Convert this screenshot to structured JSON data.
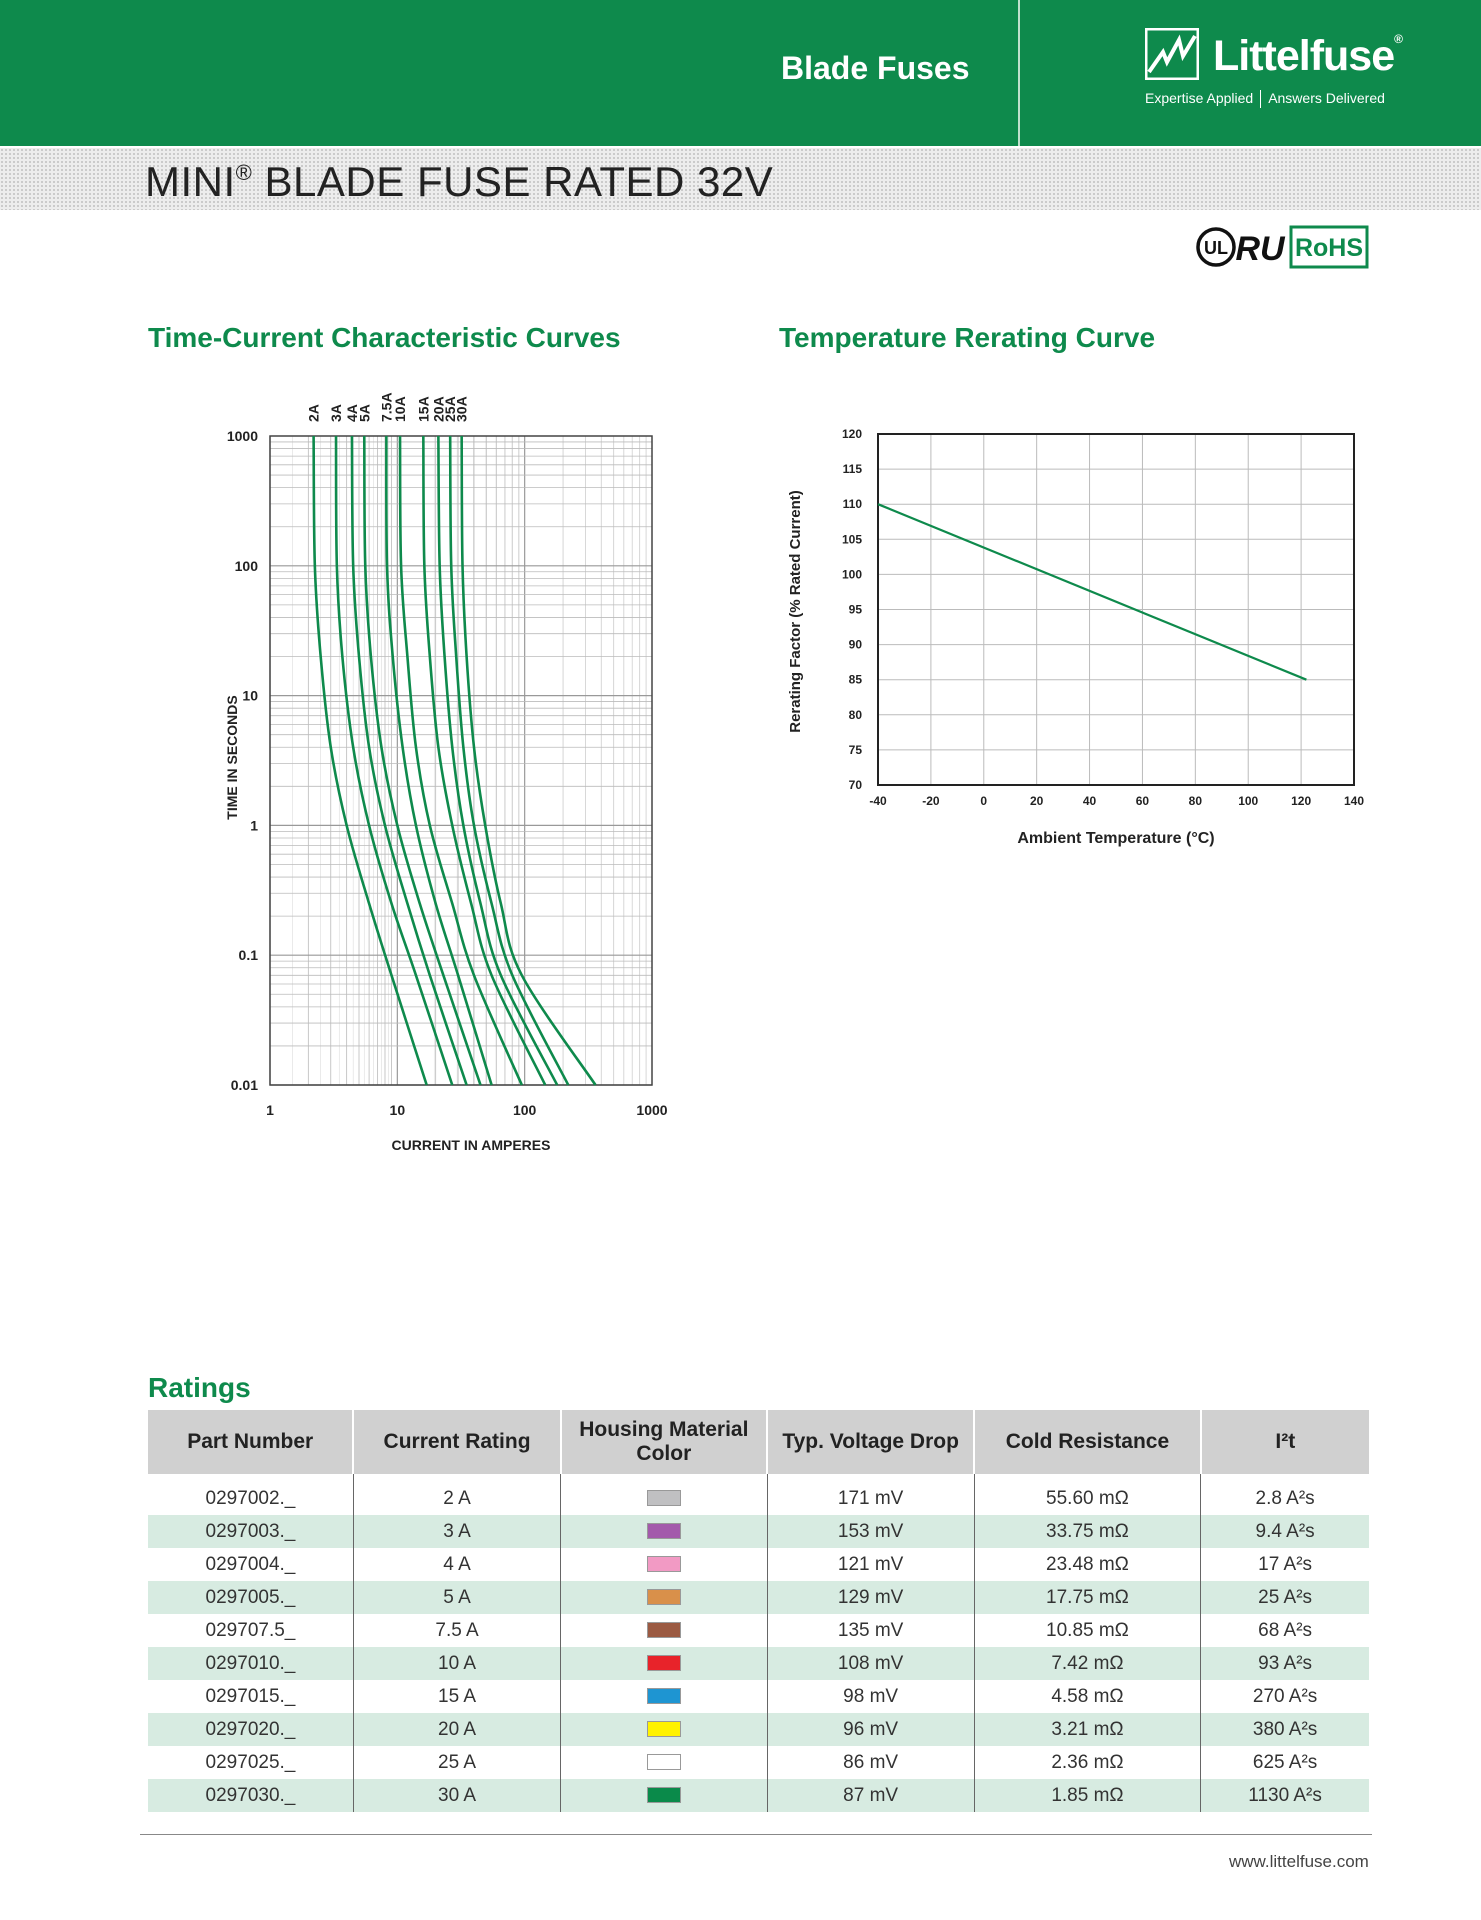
{
  "header": {
    "section": "Blade Fuses",
    "brand": "Littelfuse",
    "brand_mark": "®",
    "tagline_left": "Expertise Applied",
    "tagline_right": "Answers Delivered",
    "green": "#0e8a4c"
  },
  "title": {
    "main": "MINI",
    "reg": "®",
    "rest": " BLADE FUSE RATED 32V"
  },
  "certifications": {
    "ul_icon": "UL",
    "ru_icon": "RU",
    "rohs_label": "RoHS"
  },
  "tcc_heading": "Time-Current Characteristic Curves",
  "temp_heading": "Temperature Rerating Curve",
  "ratings_heading": "Ratings",
  "chart_data": [
    {
      "type": "line",
      "title": "Time-Current Characteristic Curves",
      "xscale": "log",
      "yscale": "log",
      "xlabel": "CURRENT IN AMPERES",
      "ylabel": "TIME IN SECONDS",
      "xlim": [
        1,
        1000
      ],
      "ylim": [
        0.01,
        1000
      ],
      "xticks": [
        "1",
        "10",
        "100",
        "1000"
      ],
      "yticks": [
        "0.01",
        "0.1",
        "1",
        "10",
        "100",
        "1000"
      ],
      "series": [
        {
          "name": "2A",
          "points": [
            [
              2.2,
              1000
            ],
            [
              2.25,
              100
            ],
            [
              2.5,
              20
            ],
            [
              3,
              4
            ],
            [
              4,
              1
            ],
            [
              6,
              0.25
            ],
            [
              9,
              0.07
            ],
            [
              17,
              0.01
            ]
          ]
        },
        {
          "name": "3A",
          "points": [
            [
              3.3,
              1000
            ],
            [
              3.35,
              100
            ],
            [
              3.7,
              20
            ],
            [
              4.5,
              4
            ],
            [
              6,
              1
            ],
            [
              9,
              0.25
            ],
            [
              14,
              0.07
            ],
            [
              27,
              0.01
            ]
          ]
        },
        {
          "name": "4A",
          "points": [
            [
              4.4,
              1000
            ],
            [
              4.5,
              100
            ],
            [
              5,
              20
            ],
            [
              6,
              4
            ],
            [
              8,
              1
            ],
            [
              12,
              0.25
            ],
            [
              18,
              0.07
            ],
            [
              35,
              0.01
            ]
          ]
        },
        {
          "name": "5A",
          "points": [
            [
              5.5,
              1000
            ],
            [
              5.6,
              100
            ],
            [
              6.2,
              20
            ],
            [
              7.5,
              4
            ],
            [
              10,
              1
            ],
            [
              15,
              0.25
            ],
            [
              23,
              0.07
            ],
            [
              45,
              0.01
            ]
          ]
        },
        {
          "name": "7.5A",
          "points": [
            [
              8.2,
              1000
            ],
            [
              8.3,
              100
            ],
            [
              9.2,
              20
            ],
            [
              11,
              4
            ],
            [
              14,
              1
            ],
            [
              20,
              0.25
            ],
            [
              30,
              0.07
            ],
            [
              55,
              0.01
            ]
          ]
        },
        {
          "name": "10A",
          "points": [
            [
              10.5,
              1000
            ],
            [
              10.7,
              100
            ],
            [
              12,
              20
            ],
            [
              14,
              4
            ],
            [
              18,
              1
            ],
            [
              27,
              0.25
            ],
            [
              40,
              0.07
            ],
            [
              95,
              0.01
            ]
          ]
        },
        {
          "name": "15A",
          "points": [
            [
              16,
              1000
            ],
            [
              16.3,
              100
            ],
            [
              18,
              20
            ],
            [
              21,
              4
            ],
            [
              27,
              1
            ],
            [
              38,
              0.25
            ],
            [
              55,
              0.07
            ],
            [
              145,
              0.01
            ]
          ]
        },
        {
          "name": "20A",
          "points": [
            [
              21,
              1000
            ],
            [
              21.5,
              100
            ],
            [
              23.5,
              20
            ],
            [
              27,
              4
            ],
            [
              33,
              1
            ],
            [
              45,
              0.25
            ],
            [
              65,
              0.07
            ],
            [
              180,
              0.01
            ]
          ]
        },
        {
          "name": "25A",
          "points": [
            [
              26,
              1000
            ],
            [
              26.5,
              100
            ],
            [
              29,
              20
            ],
            [
              33,
              4
            ],
            [
              40,
              1
            ],
            [
              55,
              0.25
            ],
            [
              80,
              0.07
            ],
            [
              220,
              0.01
            ]
          ]
        },
        {
          "name": "30A",
          "points": [
            [
              32,
              1000
            ],
            [
              32.5,
              100
            ],
            [
              35,
              20
            ],
            [
              40,
              4
            ],
            [
              49,
              1
            ],
            [
              65,
              0.25
            ],
            [
              95,
              0.07
            ],
            [
              360,
              0.01
            ]
          ]
        }
      ]
    },
    {
      "type": "line",
      "title": "Temperature Rerating Curve",
      "xlabel": "Ambient Temperature (°C)",
      "ylabel": "Rerating Factor (% Rated Current)",
      "xlim": [
        -40,
        140
      ],
      "ylim": [
        70,
        120
      ],
      "xticks": [
        "-40",
        "-20",
        "0",
        "20",
        "40",
        "60",
        "80",
        "100",
        "120",
        "140"
      ],
      "yticks": [
        "70",
        "75",
        "80",
        "85",
        "90",
        "95",
        "100",
        "105",
        "110",
        "115",
        "120"
      ],
      "series": [
        {
          "name": "Rerating",
          "x": [
            -40,
            122
          ],
          "y": [
            110,
            85
          ]
        }
      ]
    }
  ],
  "ratings": {
    "columns": [
      "Part Number",
      "Current Rating",
      "Housing Material Color",
      "Typ. Voltage Drop",
      "Cold Resistance",
      "I²t"
    ],
    "rows": [
      {
        "part": "0297002._",
        "current": "2 A",
        "color": "#c0c0c2",
        "vdrop": "171 mV",
        "resistance": "55.60 mΩ",
        "i2t": "2.8 A²s"
      },
      {
        "part": "0297003._",
        "current": "3 A",
        "color": "#a35aab",
        "vdrop": "153 mV",
        "resistance": "33.75 mΩ",
        "i2t": "9.4 A²s"
      },
      {
        "part": "0297004._",
        "current": "4 A",
        "color": "#f29ac4",
        "vdrop": "121 mV",
        "resistance": "23.48 mΩ",
        "i2t": "17 A²s"
      },
      {
        "part": "0297005._",
        "current": "5 A",
        "color": "#d9904a",
        "vdrop": "129 mV",
        "resistance": "17.75 mΩ",
        "i2t": "25 A²s"
      },
      {
        "part": "029707.5_",
        "current": "7.5 A",
        "color": "#9b5a42",
        "vdrop": "135 mV",
        "resistance": "10.85 mΩ",
        "i2t": "68 A²s"
      },
      {
        "part": "0297010._",
        "current": "10 A",
        "color": "#e8232a",
        "vdrop": "108 mV",
        "resistance": "7.42 mΩ",
        "i2t": "93 A²s"
      },
      {
        "part": "0297015._",
        "current": "15 A",
        "color": "#1e95d2",
        "vdrop": "98 mV",
        "resistance": "4.58 mΩ",
        "i2t": "270 A²s"
      },
      {
        "part": "0297020._",
        "current": "20 A",
        "color": "#fff200",
        "vdrop": "96 mV",
        "resistance": "3.21 mΩ",
        "i2t": "380 A²s"
      },
      {
        "part": "0297025._",
        "current": "25 A",
        "color": "#ffffff",
        "vdrop": "86 mV",
        "resistance": "2.36 mΩ",
        "i2t": "625 A²s"
      },
      {
        "part": "0297030._",
        "current": "30 A",
        "color": "#0a8a4a",
        "vdrop": "87 mV",
        "resistance": "1.85 mΩ",
        "i2t": "1130 A²s"
      }
    ]
  },
  "footer": {
    "url": "www.littelfuse.com"
  }
}
